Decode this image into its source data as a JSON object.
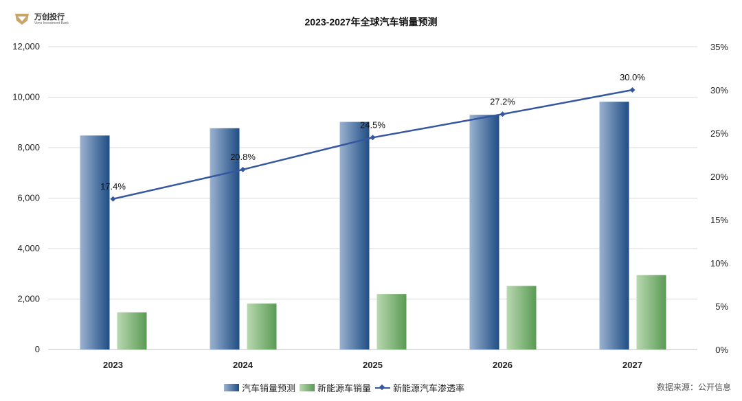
{
  "logo": {
    "name": "万创投行",
    "subtitle": "Vimo Investment Bank"
  },
  "source": "数据来源：公开信息",
  "chart_data": {
    "type": "bar",
    "title": "2023-2027年全球汽车销量预测",
    "categories": [
      "2023",
      "2024",
      "2025",
      "2026",
      "2027"
    ],
    "series": [
      {
        "name": "汽车销量预测",
        "type": "bar",
        "axis": "left",
        "color": "#2f5891",
        "values": [
          8480,
          8770,
          9020,
          9300,
          9820
        ]
      },
      {
        "name": "新能源车销量",
        "type": "bar",
        "axis": "left",
        "color": "#6aa461",
        "values": [
          1470,
          1820,
          2200,
          2520,
          2950
        ]
      },
      {
        "name": "新能源汽车渗透率",
        "type": "line",
        "axis": "right",
        "color": "#3556a0",
        "values": [
          17.4,
          20.8,
          24.5,
          27.2,
          30.0
        ],
        "labels": [
          "17.4%",
          "20.8%",
          "24.5%",
          "27.2%",
          "30.0%"
        ]
      }
    ],
    "y_left": {
      "ylim": [
        0,
        12000
      ],
      "ticks": [
        "0",
        "2,000",
        "4,000",
        "6,000",
        "8,000",
        "10,000",
        "12,000"
      ]
    },
    "y_right": {
      "ylim": [
        0,
        35
      ],
      "ticks": [
        "0%",
        "5%",
        "10%",
        "15%",
        "20%",
        "25%",
        "30%",
        "35%"
      ]
    },
    "grid": true,
    "legend": "bottom"
  }
}
